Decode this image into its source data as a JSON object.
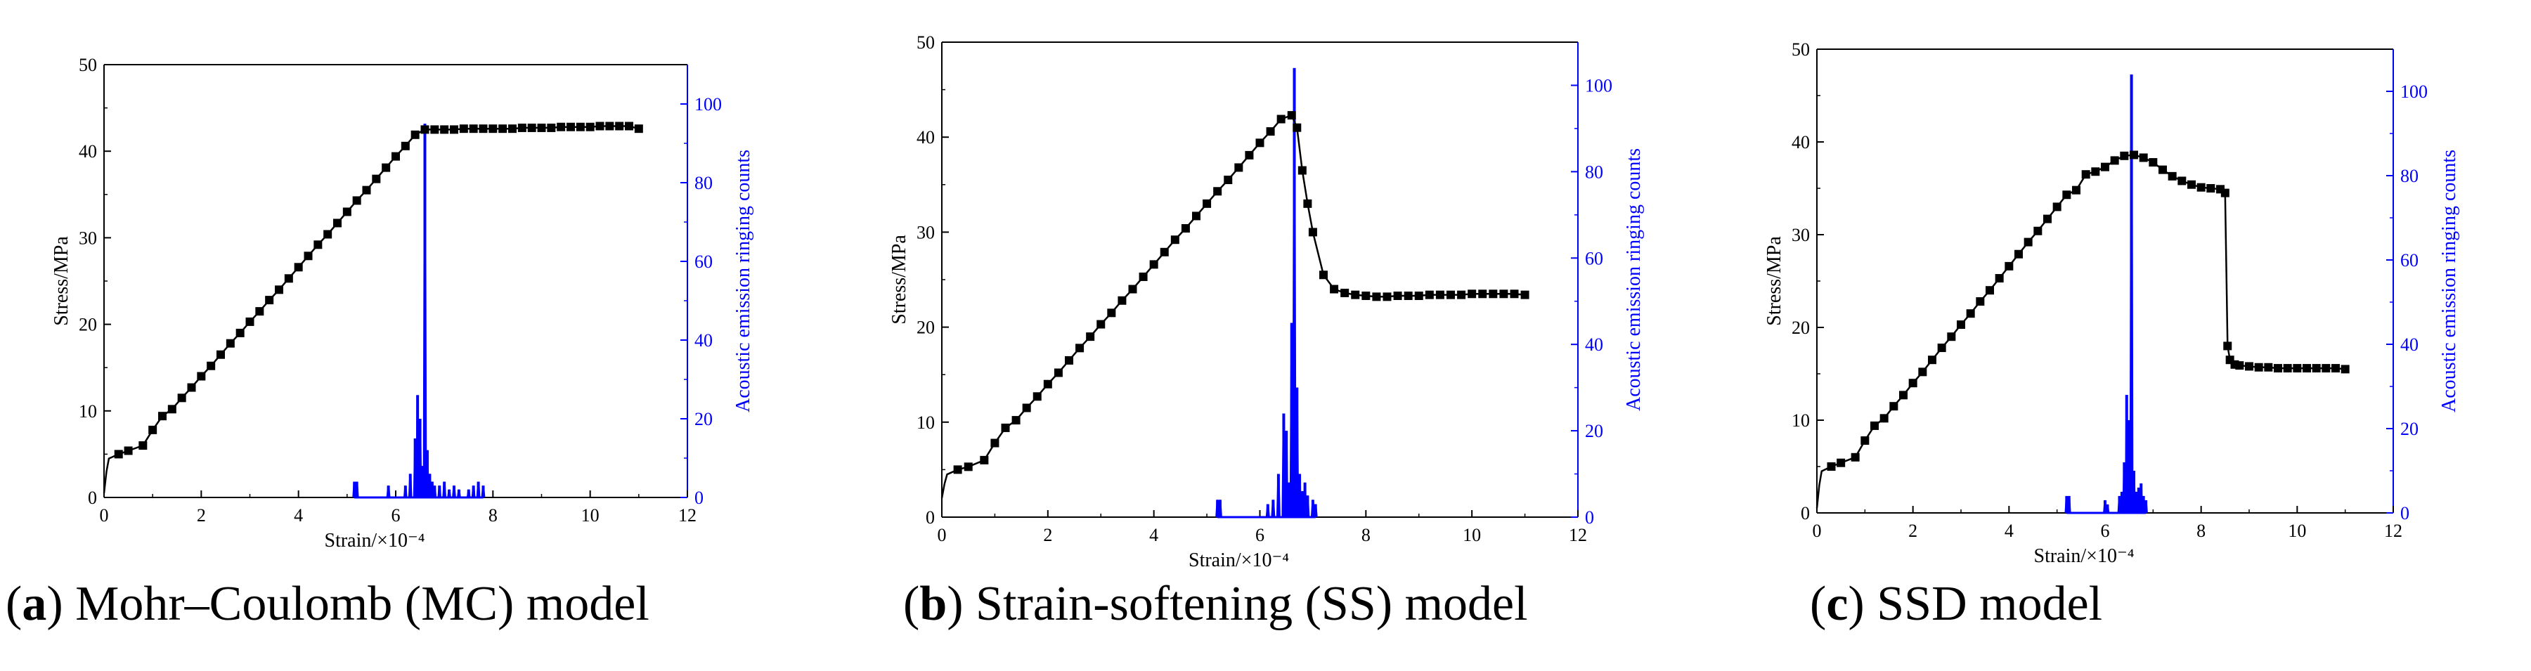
{
  "colors": {
    "stress": "#000000",
    "ae": "#0000ff",
    "axis": "#000000"
  },
  "shared": {
    "xlabel": "Strain/×10⁻⁴",
    "ylabel": "Stress/MPa",
    "y2label": "Acoustic emission ringing counts",
    "xlim": [
      0,
      12
    ],
    "ylim": [
      0,
      50
    ],
    "y2lim": [
      0,
      110
    ],
    "xticks": [
      0,
      2,
      4,
      6,
      8,
      10,
      12
    ],
    "yticks": [
      0,
      10,
      20,
      30,
      40,
      50
    ],
    "y2ticks": [
      0,
      20,
      40,
      60,
      80,
      100
    ]
  },
  "chart_data": [
    {
      "type": "line",
      "panel_letter": "a",
      "caption": ") Mohr–Coulomb (MC) model",
      "series": [
        {
          "name": "Stress",
          "axis": "left",
          "x": [
            0,
            0.05,
            0.1,
            0.3,
            0.5,
            0.8,
            1.0,
            1.2,
            1.4,
            1.6,
            1.8,
            2.0,
            2.2,
            2.4,
            2.6,
            2.8,
            3.0,
            3.2,
            3.4,
            3.6,
            3.8,
            4.0,
            4.2,
            4.4,
            4.6,
            4.8,
            5.0,
            5.2,
            5.4,
            5.6,
            5.8,
            6.0,
            6.2,
            6.4,
            6.6,
            6.8,
            7.0,
            7.2,
            7.4,
            7.6,
            7.8,
            8.0,
            8.2,
            8.4,
            8.6,
            8.8,
            9.0,
            9.2,
            9.4,
            9.6,
            9.8,
            10.0,
            10.2,
            10.4,
            10.6,
            10.8,
            11.0
          ],
          "values": [
            0.5,
            3.0,
            4.5,
            5.0,
            5.4,
            6.0,
            7.8,
            9.4,
            10.2,
            11.5,
            12.7,
            14.0,
            15.2,
            16.5,
            17.8,
            19.0,
            20.3,
            21.5,
            22.8,
            24.0,
            25.3,
            26.6,
            27.9,
            29.2,
            30.4,
            31.7,
            33.0,
            34.3,
            35.5,
            36.8,
            38.1,
            39.4,
            40.6,
            41.9,
            42.5,
            42.5,
            42.5,
            42.5,
            42.6,
            42.6,
            42.6,
            42.6,
            42.6,
            42.6,
            42.7,
            42.7,
            42.7,
            42.7,
            42.8,
            42.8,
            42.8,
            42.8,
            42.9,
            42.9,
            42.9,
            42.9,
            42.6
          ]
        },
        {
          "name": "Acoustic emission ringing counts",
          "axis": "right",
          "x": [
            5.15,
            5.2,
            5.85,
            6.2,
            6.3,
            6.4,
            6.45,
            6.5,
            6.55,
            6.6,
            6.65,
            6.7,
            6.75,
            6.8,
            6.9,
            7.0,
            7.1,
            7.2,
            7.3,
            7.5,
            7.6,
            7.7,
            7.8
          ],
          "values": [
            4,
            4,
            3,
            3,
            6,
            15,
            26,
            20,
            8,
            95,
            12,
            6,
            4,
            3,
            3,
            4,
            2,
            3,
            2,
            2,
            3,
            4,
            3
          ]
        }
      ]
    },
    {
      "type": "line",
      "panel_letter": "b",
      "caption": ") Strain-softening (SS) model",
      "series": [
        {
          "name": "Stress",
          "axis": "left",
          "x": [
            0,
            0.05,
            0.1,
            0.3,
            0.5,
            0.8,
            1.0,
            1.2,
            1.4,
            1.6,
            1.8,
            2.0,
            2.2,
            2.4,
            2.6,
            2.8,
            3.0,
            3.2,
            3.4,
            3.6,
            3.8,
            4.0,
            4.2,
            4.4,
            4.6,
            4.8,
            5.0,
            5.2,
            5.4,
            5.6,
            5.8,
            6.0,
            6.2,
            6.4,
            6.6,
            6.7,
            6.8,
            6.9,
            7.0,
            7.2,
            7.4,
            7.6,
            7.8,
            8.0,
            8.2,
            8.4,
            8.6,
            8.8,
            9.0,
            9.2,
            9.4,
            9.6,
            9.8,
            10.0,
            10.2,
            10.4,
            10.6,
            10.8,
            11.0
          ],
          "values": [
            2.0,
            3.5,
            4.5,
            5.0,
            5.3,
            6.0,
            7.8,
            9.4,
            10.2,
            11.5,
            12.7,
            14.0,
            15.2,
            16.5,
            17.8,
            19.0,
            20.3,
            21.5,
            22.8,
            24.0,
            25.3,
            26.6,
            27.9,
            29.2,
            30.4,
            31.7,
            33.0,
            34.3,
            35.5,
            36.8,
            38.1,
            39.4,
            40.6,
            41.9,
            42.3,
            41.0,
            36.5,
            33.0,
            30.0,
            25.5,
            24.0,
            23.6,
            23.4,
            23.3,
            23.2,
            23.2,
            23.3,
            23.3,
            23.3,
            23.4,
            23.4,
            23.4,
            23.4,
            23.5,
            23.5,
            23.5,
            23.5,
            23.5,
            23.4
          ]
        },
        {
          "name": "Acoustic emission ringing counts",
          "axis": "right",
          "x": [
            5.2,
            5.25,
            6.15,
            6.25,
            6.35,
            6.45,
            6.5,
            6.55,
            6.6,
            6.65,
            6.7,
            6.75,
            6.8,
            6.85,
            6.9,
            7.0,
            7.05
          ],
          "values": [
            4,
            4,
            3,
            4,
            10,
            24,
            20,
            8,
            45,
            104,
            30,
            10,
            6,
            8,
            5,
            4,
            3
          ]
        }
      ]
    },
    {
      "type": "line",
      "panel_letter": "c",
      "caption": "SSD model",
      "series": [
        {
          "name": "Stress",
          "axis": "left",
          "x": [
            0,
            0.05,
            0.1,
            0.3,
            0.5,
            0.8,
            1.0,
            1.2,
            1.4,
            1.6,
            1.8,
            2.0,
            2.2,
            2.4,
            2.6,
            2.8,
            3.0,
            3.2,
            3.4,
            3.6,
            3.8,
            4.0,
            4.2,
            4.4,
            4.6,
            4.8,
            5.0,
            5.2,
            5.4,
            5.6,
            5.8,
            6.0,
            6.2,
            6.4,
            6.6,
            6.8,
            7.0,
            7.2,
            7.4,
            7.6,
            7.8,
            8.0,
            8.2,
            8.4,
            8.5,
            8.55,
            8.6,
            8.7,
            8.8,
            9.0,
            9.2,
            9.4,
            9.6,
            9.8,
            10.0,
            10.2,
            10.4,
            10.6,
            10.8,
            11.0
          ],
          "values": [
            0.5,
            3.0,
            4.5,
            5.0,
            5.4,
            6.0,
            7.8,
            9.4,
            10.2,
            11.5,
            12.7,
            14.0,
            15.2,
            16.5,
            17.8,
            19.0,
            20.3,
            21.5,
            22.8,
            24.0,
            25.3,
            26.6,
            27.9,
            29.2,
            30.4,
            31.7,
            33.0,
            34.3,
            34.8,
            36.5,
            36.8,
            37.3,
            38.0,
            38.5,
            38.6,
            38.3,
            37.8,
            37.0,
            36.3,
            35.8,
            35.4,
            35.1,
            35.0,
            34.9,
            34.5,
            18.0,
            16.5,
            16.0,
            15.9,
            15.8,
            15.7,
            15.7,
            15.6,
            15.6,
            15.6,
            15.6,
            15.6,
            15.6,
            15.6,
            15.5
          ]
        },
        {
          "name": "Acoustic emission ringing counts",
          "axis": "right",
          "x": [
            5.2,
            5.25,
            6.0,
            6.05,
            6.3,
            6.35,
            6.4,
            6.45,
            6.5,
            6.55,
            6.6,
            6.65,
            6.7,
            6.75,
            6.8,
            6.85
          ],
          "values": [
            4,
            4,
            3,
            2,
            4,
            5,
            12,
            28,
            22,
            104,
            10,
            5,
            6,
            7,
            4,
            3
          ]
        }
      ]
    }
  ]
}
